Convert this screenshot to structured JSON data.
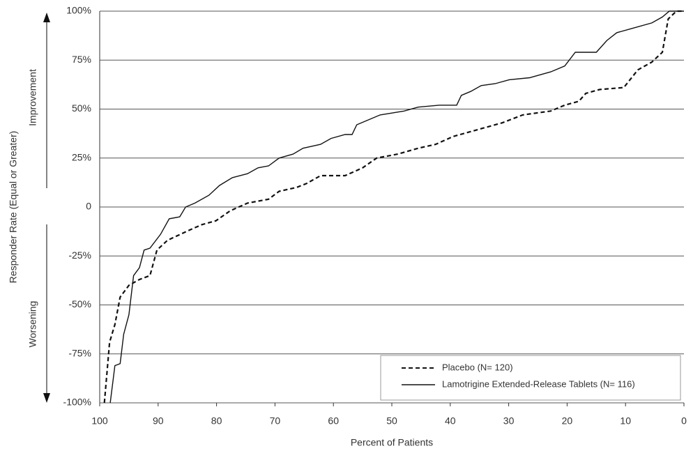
{
  "chart_data": {
    "type": "line",
    "y_label": "Responder Rate (Equal or Greater)",
    "annotation_top": "Improvement",
    "annotation_bottom": "Worsening",
    "x_label": "Percent of Patients",
    "xlim": [
      100,
      0
    ],
    "xticks": [
      100,
      90,
      80,
      70,
      60,
      50,
      40,
      30,
      20,
      10,
      0
    ],
    "ylim": [
      -100,
      100
    ],
    "yticks": [
      {
        "value": -100,
        "label": "-100%"
      },
      {
        "value": -75,
        "label": "-75%"
      },
      {
        "value": -50,
        "label": "-50%"
      },
      {
        "value": -25,
        "label": "-25%"
      },
      0,
      {
        "value": 25,
        "label": "25%"
      },
      {
        "value": 50,
        "label": "50%"
      },
      {
        "value": 75,
        "label": "75%"
      },
      {
        "value": 100,
        "label": "100%"
      }
    ],
    "grid": true,
    "legend": "lower right",
    "series": [
      {
        "name": "Placebo (N= 120)",
        "color": "#111",
        "dash": true,
        "x": [
          99.2,
          98.3,
          97.4,
          96.5,
          95,
          93.2,
          91.4,
          90.2,
          88.4,
          84.8,
          82.5,
          80.1,
          77.7,
          74.7,
          71.1,
          69.3,
          66.3,
          64.6,
          62.2,
          58,
          55,
          52.6,
          49,
          45.5,
          42.5,
          39.5,
          34.7,
          31.1,
          27.6,
          22.8,
          20.4,
          18,
          16.8,
          14.4,
          10.3,
          7.9,
          5.5,
          3.7,
          2.7,
          1.3,
          0
        ],
        "values": [
          -100,
          -69,
          -60,
          -46,
          -40,
          -37,
          -35,
          -22,
          -17,
          -12,
          -9,
          -7,
          -2,
          2,
          4,
          8,
          10,
          12,
          16,
          16,
          20,
          25,
          27,
          30,
          32,
          36,
          40,
          43,
          47,
          49,
          52,
          54,
          58,
          60,
          61,
          70,
          74,
          79,
          96,
          100,
          100
        ]
      },
      {
        "name": "Lamotrigine Extended-Release Tablets (N= 116)",
        "color": "#111",
        "dash": false,
        "x": [
          98.2,
          97.4,
          96.5,
          95.9,
          95,
          94.2,
          93.2,
          92.4,
          91.4,
          89.6,
          88.1,
          86.3,
          85.3,
          83.7,
          81.3,
          79.5,
          77.3,
          74.7,
          72.9,
          71.1,
          69.3,
          66.9,
          65.2,
          62.2,
          60.4,
          58,
          56.8,
          56,
          54.4,
          52,
          47.9,
          45.5,
          41.9,
          38.9,
          38.1,
          36.5,
          34.7,
          32.3,
          29.9,
          26.4,
          22.8,
          20.4,
          18.6,
          15,
          13.2,
          11.5,
          9.1,
          5.5,
          3.7,
          2.5,
          0
        ],
        "values": [
          -100,
          -81,
          -80,
          -65,
          -55,
          -35,
          -31,
          -22,
          -21,
          -14,
          -6,
          -5,
          0,
          2,
          6,
          11,
          15,
          17,
          20,
          21,
          25,
          27,
          30,
          32,
          35,
          37,
          37,
          42,
          44,
          47,
          49,
          51,
          52,
          52,
          57,
          59,
          62,
          63,
          65,
          66,
          69,
          72,
          79,
          79,
          85,
          89,
          91,
          94,
          97,
          100,
          100
        ]
      }
    ]
  }
}
